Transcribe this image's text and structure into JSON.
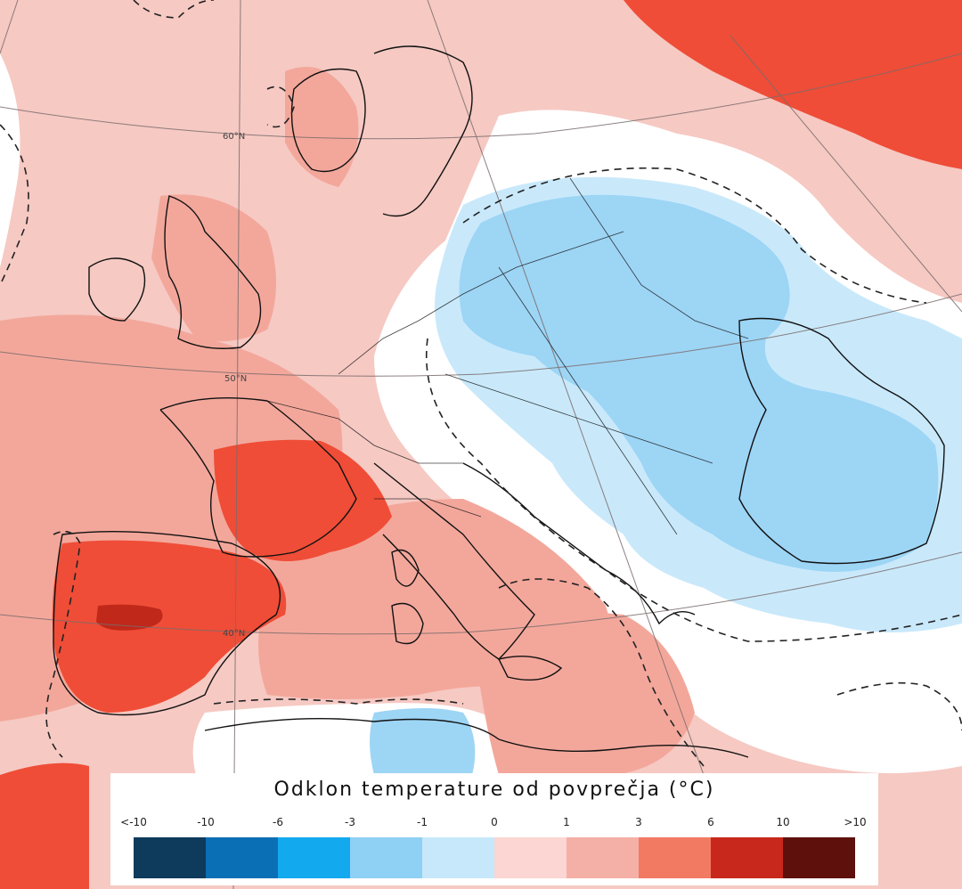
{
  "map": {
    "latitude_labels": [
      "60°N",
      "50°N",
      "40°N"
    ],
    "colors": {
      "ocean_slight_warm": "#f6c9c3",
      "land_warm": "#f3a79b",
      "hot": "#ef4d37",
      "very_hot": "#c0281a",
      "cold_light": "#c9e9fb",
      "cold": "#9dd5f5",
      "neutral": "#ffffff",
      "borders": "#111111"
    }
  },
  "legend": {
    "title": "Odklon temperature od povprečja (°C)",
    "ticks": [
      "<-10",
      "-10",
      "-6",
      "-3",
      "-1",
      "0",
      "1",
      "3",
      "6",
      "10",
      ">10"
    ],
    "swatches": [
      "#0e3a5c",
      "#0a6fb5",
      "#12a9ef",
      "#8fd0f5",
      "#c6e8fa",
      "#fbd6d2",
      "#f4b0a6",
      "#f27a63",
      "#c8281b",
      "#5e100c"
    ]
  }
}
